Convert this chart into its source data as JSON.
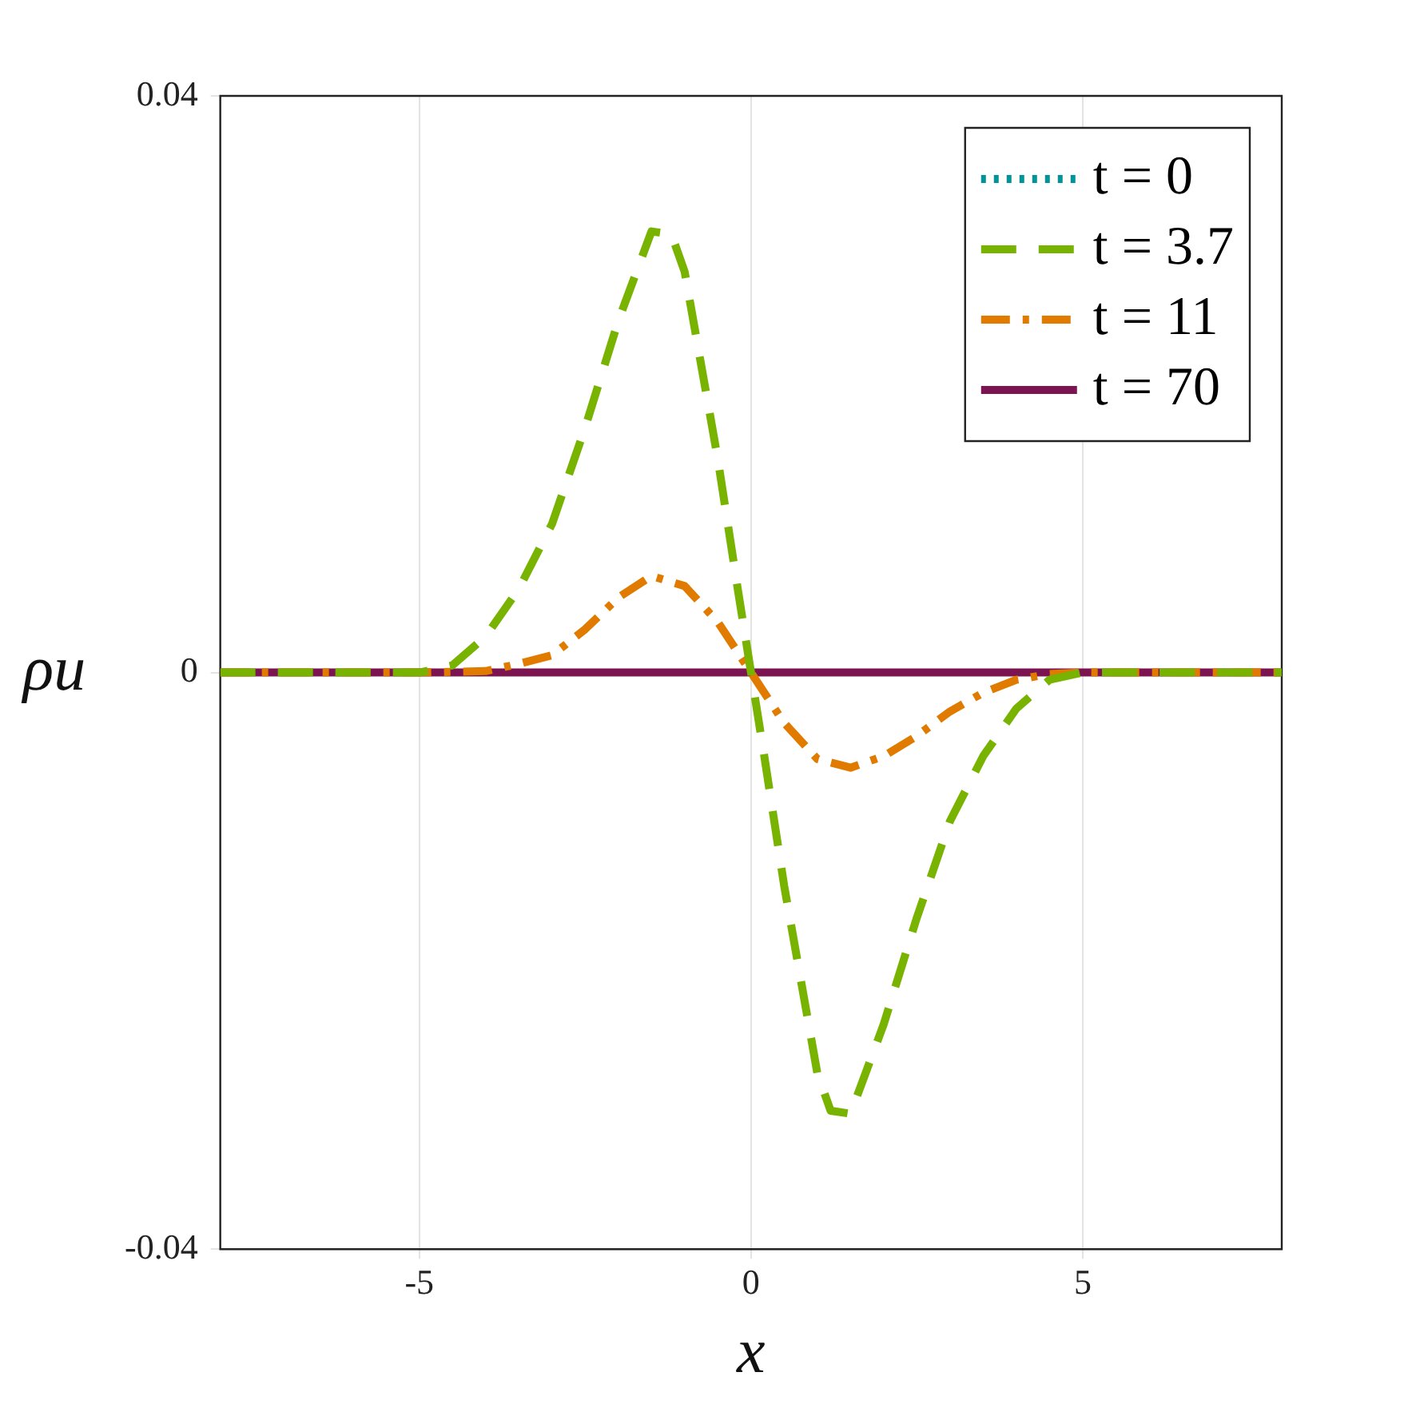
{
  "chart_data": {
    "type": "line",
    "xlabel": "x",
    "ylabel": "ρu",
    "xlim": [
      -8,
      8
    ],
    "xticks": [
      -5,
      0,
      5
    ],
    "ylim": [
      -0.04,
      0.04
    ],
    "yticks": [
      -0.04,
      0,
      0.04
    ],
    "grid": true,
    "legend": "top right",
    "marker": "none",
    "series": [
      {
        "name": "t = 0",
        "color": "#00929a",
        "line_style": "dotted"
      },
      {
        "name": "t = 3.7",
        "color": "#77b300",
        "line_style": "dashed",
        "x": [
          -8,
          -5,
          -4.5,
          -4,
          -3.5,
          -3,
          -2.5,
          -2,
          -1.5,
          -1.2,
          -1,
          -0.5,
          -0.2,
          0,
          0.2,
          0.5,
          1,
          1.2,
          1.5,
          2,
          2.5,
          3,
          3.5,
          4,
          4.5,
          5,
          8
        ],
        "values": [
          0,
          0,
          0.0005,
          0.0025,
          0.0058,
          0.0103,
          0.017,
          0.0244,
          0.0306,
          0.0304,
          0.0278,
          0.0148,
          0.0058,
          0,
          -0.0058,
          -0.0148,
          -0.0278,
          -0.0304,
          -0.0306,
          -0.0244,
          -0.017,
          -0.0103,
          -0.0058,
          -0.0025,
          -0.0005,
          0,
          0
        ]
      },
      {
        "name": "t = 11",
        "color": "#e07b00",
        "line_style": "dashdot",
        "x": [
          -8,
          -5,
          -4,
          -3.5,
          -3,
          -2.5,
          -2,
          -1.5,
          -1,
          -0.5,
          0,
          0.5,
          1,
          1.5,
          2,
          2.5,
          3,
          3.5,
          4,
          4.5,
          5,
          8
        ],
        "values": [
          0,
          0,
          0.0001,
          0.0006,
          0.0012,
          0.003,
          0.0052,
          0.0067,
          0.006,
          0.0035,
          0,
          -0.0035,
          -0.006,
          -0.0066,
          -0.0058,
          -0.0044,
          -0.0027,
          -0.0014,
          -0.0005,
          -0.0001,
          0,
          0
        ]
      },
      {
        "name": "t = 70",
        "color": "#7b1450",
        "line_style": "solid",
        "x": [
          -8,
          8
        ],
        "values": [
          0,
          0
        ]
      }
    ]
  }
}
